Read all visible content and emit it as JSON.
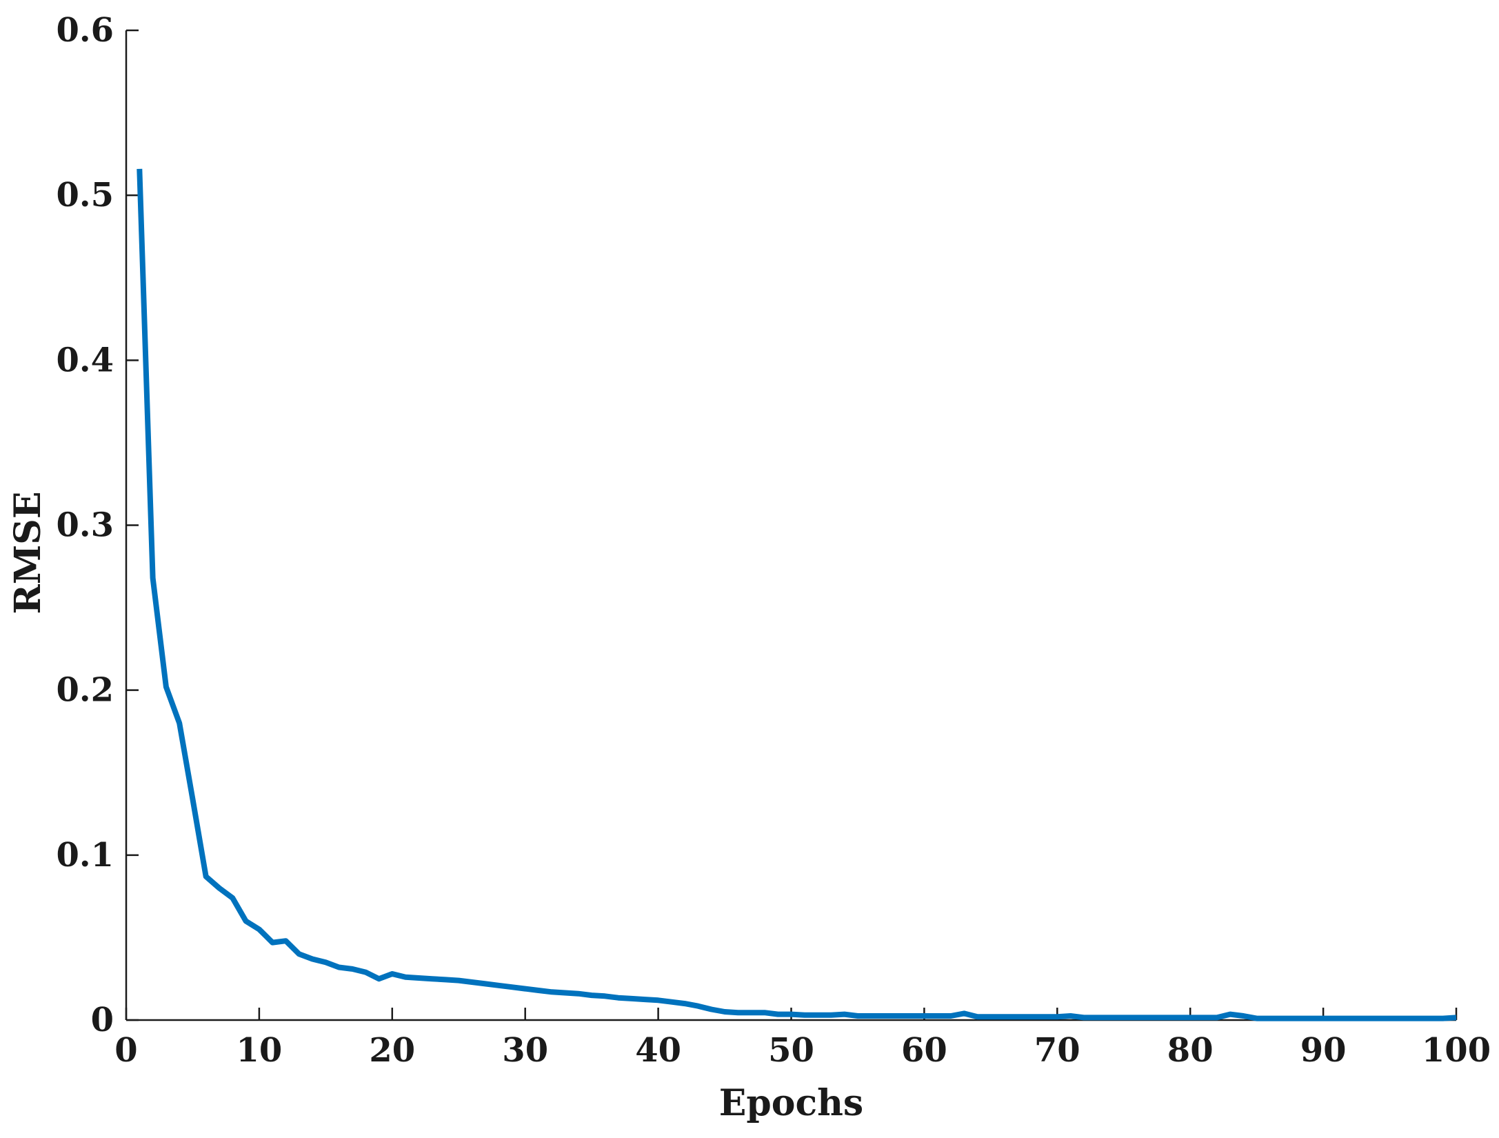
{
  "chart_data": {
    "type": "line",
    "title": "",
    "xlabel": "Epochs",
    "ylabel": "RMSE",
    "xlim": [
      0,
      100
    ],
    "ylim": [
      0,
      0.6
    ],
    "x_ticks": [
      "0",
      "10",
      "20",
      "30",
      "40",
      "50",
      "60",
      "70",
      "80",
      "90",
      "100"
    ],
    "y_ticks": [
      "0",
      "0.1",
      "0.2",
      "0.3",
      "0.4",
      "0.5",
      "0.6"
    ],
    "grid": false,
    "legend": "none",
    "colors": {
      "line": "#0072BD",
      "axis": "#1a1a1a"
    },
    "series": [
      {
        "x": [
          1,
          2,
          3,
          4,
          5,
          6,
          7,
          8,
          9,
          10,
          11,
          12,
          13,
          14,
          15,
          16,
          17,
          18,
          19,
          20,
          21,
          22,
          23,
          24,
          25,
          26,
          27,
          28,
          29,
          30,
          31,
          32,
          33,
          34,
          35,
          36,
          37,
          38,
          39,
          40,
          41,
          42,
          43,
          44,
          45,
          46,
          47,
          48,
          49,
          50,
          51,
          52,
          53,
          54,
          55,
          56,
          57,
          58,
          59,
          60,
          61,
          62,
          63,
          64,
          65,
          66,
          67,
          68,
          69,
          70,
          71,
          72,
          73,
          74,
          75,
          76,
          77,
          78,
          79,
          80,
          81,
          82,
          83,
          84,
          85,
          86,
          87,
          88,
          89,
          90,
          91,
          92,
          93,
          94,
          95,
          96,
          97,
          98,
          99,
          100
        ],
        "y": [
          0.516,
          0.268,
          0.202,
          0.18,
          0.134,
          0.087,
          0.08,
          0.074,
          0.06,
          0.055,
          0.047,
          0.048,
          0.04,
          0.037,
          0.035,
          0.032,
          0.031,
          0.029,
          0.025,
          0.028,
          0.026,
          0.0255,
          0.025,
          0.0245,
          0.024,
          0.023,
          0.022,
          0.021,
          0.02,
          0.019,
          0.018,
          0.017,
          0.0165,
          0.016,
          0.015,
          0.0145,
          0.0135,
          0.013,
          0.0125,
          0.012,
          0.011,
          0.01,
          0.0085,
          0.0065,
          0.005,
          0.0045,
          0.0045,
          0.0045,
          0.0035,
          0.0035,
          0.003,
          0.003,
          0.003,
          0.0035,
          0.0025,
          0.0025,
          0.0025,
          0.0025,
          0.0025,
          0.0025,
          0.0025,
          0.0025,
          0.004,
          0.002,
          0.002,
          0.002,
          0.002,
          0.002,
          0.002,
          0.002,
          0.0025,
          0.0015,
          0.0015,
          0.0015,
          0.0015,
          0.0015,
          0.0015,
          0.0015,
          0.0015,
          0.0015,
          0.0015,
          0.0015,
          0.0035,
          0.0025,
          0.001,
          0.001,
          0.001,
          0.001,
          0.001,
          0.001,
          0.001,
          0.001,
          0.001,
          0.001,
          0.001,
          0.001,
          0.001,
          0.001,
          0.001,
          0.0015
        ]
      }
    ]
  }
}
